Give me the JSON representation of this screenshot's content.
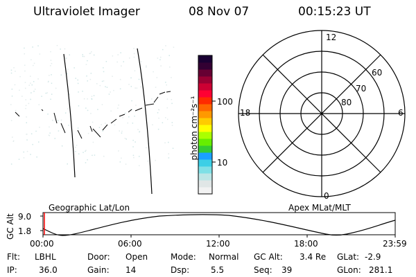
{
  "header": {
    "instrument": "Ultraviolet Imager",
    "date": "08 Nov 07",
    "time": "00:15:23 UT"
  },
  "colorbar": {
    "label": "photon cm⁻²s⁻¹",
    "tick_labels": [
      "100",
      "10"
    ],
    "colors": [
      "#f2f2f2",
      "#e0e6e6",
      "#bde6e6",
      "#7fe0e6",
      "#3ccfe6",
      "#1aa0ff",
      "#33cc33",
      "#66ee00",
      "#aaff00",
      "#ffff00",
      "#ffcc00",
      "#ff9900",
      "#ff6600",
      "#ff2a00",
      "#ff0033",
      "#cc0033",
      "#990033",
      "#660033",
      "#330033",
      "#1a0033"
    ]
  },
  "polar": {
    "mlt_labels": [
      "12",
      "18",
      "6",
      "0"
    ],
    "lat_labels": [
      "60",
      "70",
      "80"
    ]
  },
  "timeline": {
    "ylabel": "GC Alt",
    "y_ticks": [
      "9.0",
      "1.8"
    ],
    "left_caption": "Geographic Lat/Lon",
    "right_caption": "Apex MLat/MLT",
    "x_ticks": [
      "00:00",
      "06:00",
      "12:00",
      "18:00",
      "23:59"
    ],
    "marker_color": "#ff0000"
  },
  "footer": {
    "r1": [
      {
        "key": "Flt:",
        "val": "LBHL"
      },
      {
        "key": "Door:",
        "val": "Open"
      },
      {
        "key": "Mode:",
        "val": "Normal"
      },
      {
        "key": "GC Alt:",
        "val": "3.4 Re"
      },
      {
        "key": "GLat:",
        "val": "-2.9"
      }
    ],
    "r2": [
      {
        "key": "IP:",
        "val": "36.0"
      },
      {
        "key": "Gain:",
        "val": "14"
      },
      {
        "key": "Dsp:",
        "val": "5.5"
      },
      {
        "key": "Seq:",
        "val": "39"
      },
      {
        "key": "GLon:",
        "val": "281.1"
      }
    ]
  }
}
